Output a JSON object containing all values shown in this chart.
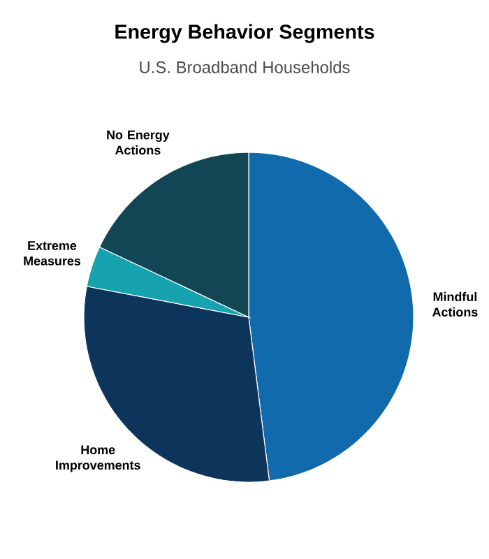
{
  "chart_data": {
    "type": "pie",
    "title": "Energy Behavior Segments",
    "subtitle": "U.S. Broadband Households",
    "categories": [
      "Mindful Actions",
      "Home Improvements",
      "Extreme Measures",
      "No Energy Actions"
    ],
    "values": [
      48,
      30,
      4,
      18
    ],
    "colors": [
      "#116aab",
      "#0d355c",
      "#17a2b0",
      "#124654"
    ]
  }
}
